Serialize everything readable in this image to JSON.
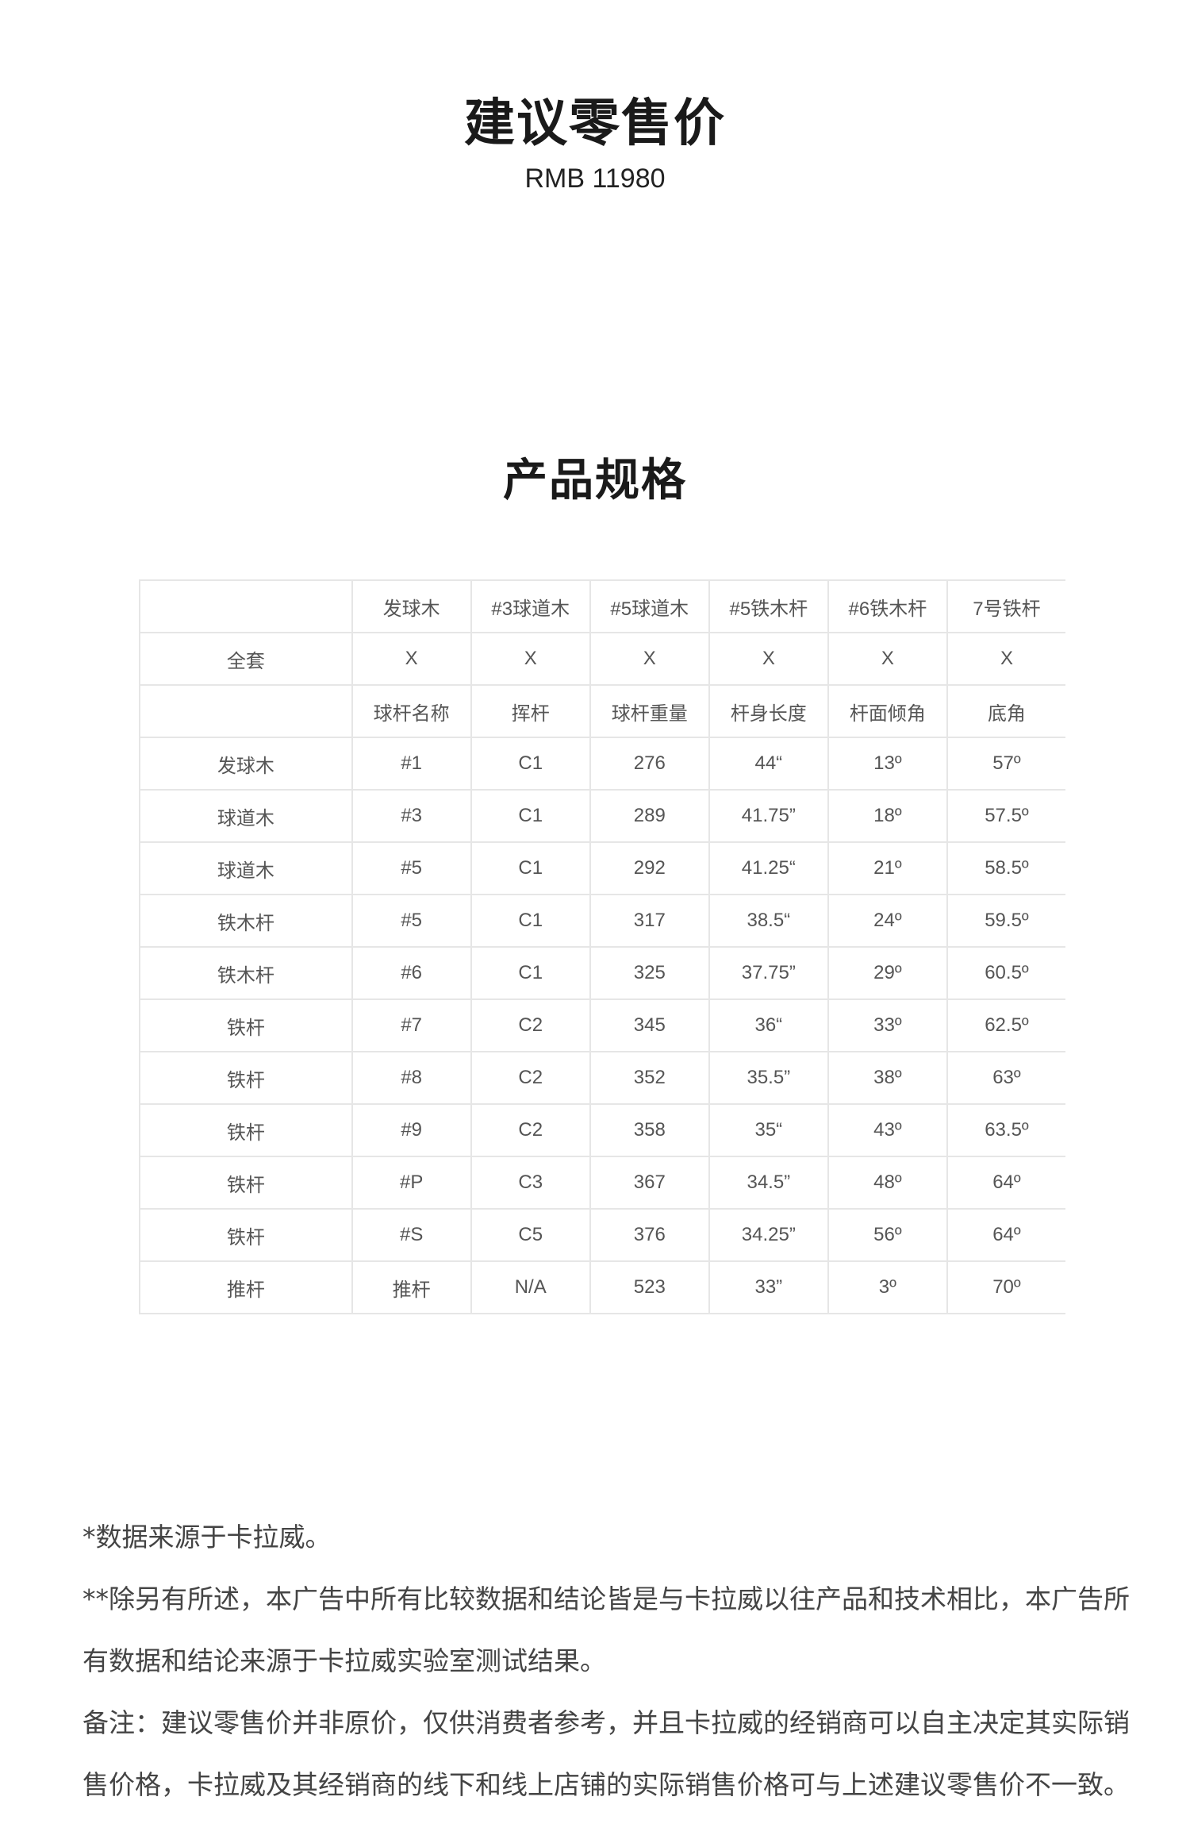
{
  "header": {
    "title": "建议零售价",
    "price": "RMB 11980"
  },
  "spec_section": {
    "title": "产品规格"
  },
  "table": {
    "rows": [
      [
        "",
        "发球木",
        "#3球道木",
        "#5球道木",
        "#5铁木杆",
        "#6铁木杆",
        "7号铁杆"
      ],
      [
        "全套",
        "X",
        "X",
        "X",
        "X",
        "X",
        "X"
      ],
      [
        "",
        "球杆名称",
        "挥杆",
        "球杆重量",
        "杆身长度",
        "杆面倾角",
        "底角"
      ],
      [
        "发球木",
        "#1",
        "C1",
        "276",
        "44“",
        "13º",
        "57º"
      ],
      [
        "球道木",
        "#3",
        "C1",
        "289",
        "41.75”",
        "18º",
        "57.5º"
      ],
      [
        "球道木",
        "#5",
        "C1",
        "292",
        "41.25“",
        "21º",
        "58.5º"
      ],
      [
        "铁木杆",
        "#5",
        "C1",
        "317",
        "38.5“",
        "24º",
        "59.5º"
      ],
      [
        "铁木杆",
        "#6",
        "C1",
        "325",
        "37.75”",
        "29º",
        "60.5º"
      ],
      [
        "铁杆",
        "#7",
        "C2",
        "345",
        "36“",
        "33º",
        "62.5º"
      ],
      [
        "铁杆",
        "#8",
        "C2",
        "352",
        "35.5”",
        "38º",
        "63º"
      ],
      [
        "铁杆",
        "#9",
        "C2",
        "358",
        "35“",
        "43º",
        "63.5º"
      ],
      [
        "铁杆",
        "#P",
        "C3",
        "367",
        "34.5”",
        "48º",
        "64º"
      ],
      [
        "铁杆",
        "#S",
        "C5",
        "376",
        "34.25”",
        "56º",
        "64º"
      ],
      [
        "推杆",
        "推杆",
        "N/A",
        "523",
        "33”",
        "3º",
        "70º"
      ]
    ]
  },
  "notes": [
    "*数据来源于卡拉威。",
    "**除另有所述，本广告中所有比较数据和结论皆是与卡拉威以往产品和技术相比，本广告所有数据和结论来源于卡拉威实验室测试结果。",
    "备注：建议零售价并非原价，仅供消费者参考，并且卡拉威的经销商可以自主决定其实际销售价格，卡拉威及其经销商的线下和线上店铺的实际销售价格可与上述建议零售价不一致。"
  ]
}
